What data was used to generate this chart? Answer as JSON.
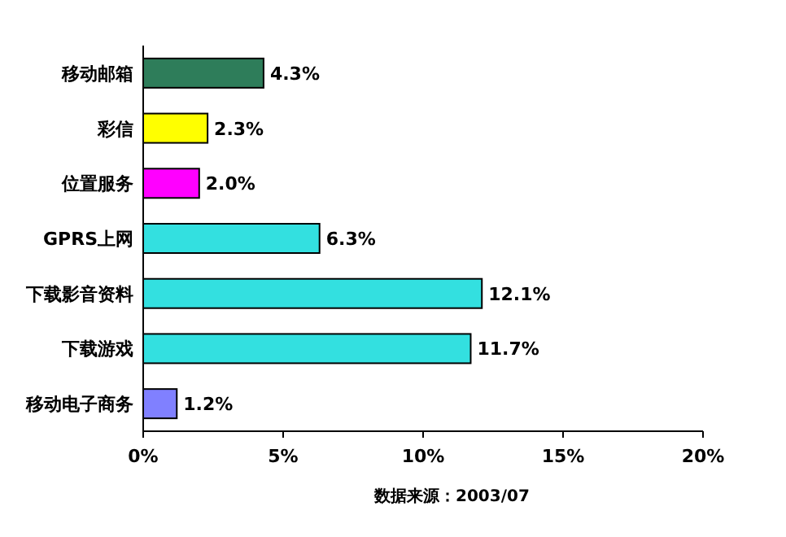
{
  "chart_data": {
    "type": "bar",
    "orientation": "horizontal",
    "categories": [
      "移动邮箱",
      "彩信",
      "位置服务",
      "GPRS上网",
      "下载影音资料",
      "下载游戏",
      "移动电子商务"
    ],
    "values": [
      4.3,
      2.3,
      2.0,
      6.3,
      12.1,
      11.7,
      1.2
    ],
    "colors": [
      "#2e7d5a",
      "#ffff00",
      "#ff00ff",
      "#33e0e0",
      "#33e0e0",
      "#33e0e0",
      "#8080ff"
    ],
    "value_labels": [
      "4.3%",
      "2.3%",
      "2.0%",
      "6.3%",
      "12.1%",
      "11.7%",
      "1.2%"
    ],
    "xlim": [
      0,
      20
    ],
    "xticks": [
      {
        "value": 0,
        "label": "0%"
      },
      {
        "value": 5,
        "label": "5%"
      },
      {
        "value": 10,
        "label": "10%"
      },
      {
        "value": 15,
        "label": "15%"
      },
      {
        "value": 20,
        "label": "20%"
      }
    ],
    "annotations": [
      "数据来源：2003/07"
    ]
  }
}
